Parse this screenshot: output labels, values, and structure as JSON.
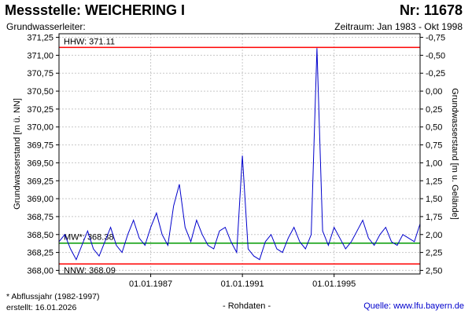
{
  "header": {
    "title": "Messstelle: WEICHERING I",
    "number": "Nr: 11678",
    "aquifer": "Grundwasserleiter:",
    "period": "Zeitraum: Jan 1983 - Okt 1998"
  },
  "footer": {
    "footnote": "* Abflussjahr (1982-1997)",
    "created": "erstellt:  16.01.2026",
    "datatype": "- Rohdaten -",
    "source": "Quelle:  www.lfu.bayern.de"
  },
  "colors": {
    "series": "#0000cc",
    "extreme_lines": "#ff0000",
    "mean_line": "#009900",
    "grid": "#c8c8c8"
  },
  "chart_data": {
    "type": "line",
    "title": "Messstelle: WEICHERING I",
    "xlabel": "",
    "ylabel": "Grundwasserstand [m ü. NN]",
    "y2label": "Grundwasserstand [m u. Gelände]",
    "grid": true,
    "x_range": [
      "1983-01",
      "1998-10"
    ],
    "ylim": [
      367.95,
      371.3
    ],
    "y_ticks": [
      "371,25",
      "371,00",
      "370,75",
      "370,50",
      "370,25",
      "370,00",
      "369,75",
      "369,50",
      "369,25",
      "369,00",
      "368,75",
      "368,50",
      "368,25",
      "368,00"
    ],
    "y2_ticks": [
      "-0,75",
      "-0,50",
      "-0,25",
      "0,00",
      "0,25",
      "0,50",
      "0,75",
      "1,00",
      "1,25",
      "1,50",
      "1,75",
      "2,00",
      "2,25",
      "2,50"
    ],
    "x_ticks": [
      "01.01.1987",
      "01.01.1991",
      "01.01.1995"
    ],
    "reference_lines": [
      {
        "label": "HHW: 371.11",
        "value": 371.11
      },
      {
        "label": "MW*: 368.38",
        "value": 368.38
      },
      {
        "label": "NNW: 368.09",
        "value": 368.09
      }
    ],
    "series": [
      {
        "x": [
          "1983-01",
          "1983-04",
          "1983-07",
          "1983-10",
          "1984-01",
          "1984-04",
          "1984-07",
          "1984-10",
          "1985-01",
          "1985-04",
          "1985-07",
          "1985-10",
          "1986-01",
          "1986-04",
          "1986-07",
          "1986-10",
          "1987-01",
          "1987-04",
          "1987-07",
          "1987-10",
          "1988-01",
          "1988-04",
          "1988-07",
          "1988-10",
          "1989-01",
          "1989-04",
          "1989-07",
          "1989-10",
          "1990-01",
          "1990-04",
          "1990-07",
          "1990-10",
          "1991-01",
          "1991-04",
          "1991-07",
          "1991-10",
          "1992-01",
          "1992-04",
          "1992-07",
          "1992-10",
          "1993-01",
          "1993-04",
          "1993-07",
          "1993-10",
          "1994-01",
          "1994-04",
          "1994-07",
          "1994-10",
          "1995-01",
          "1995-04",
          "1995-07",
          "1995-10",
          "1996-01",
          "1996-04",
          "1996-07",
          "1996-10",
          "1997-01",
          "1997-04",
          "1997-07",
          "1997-10",
          "1998-01",
          "1998-04",
          "1998-07",
          "1998-10"
        ],
        "y": [
          368.4,
          368.5,
          368.3,
          368.15,
          368.35,
          368.55,
          368.3,
          368.2,
          368.4,
          368.6,
          368.35,
          368.25,
          368.5,
          368.7,
          368.45,
          368.35,
          368.6,
          368.8,
          368.5,
          368.35,
          368.9,
          369.2,
          368.6,
          368.4,
          368.7,
          368.5,
          368.35,
          368.3,
          368.55,
          368.6,
          368.4,
          368.25,
          369.6,
          368.3,
          368.2,
          368.15,
          368.4,
          368.5,
          368.3,
          368.25,
          368.45,
          368.6,
          368.4,
          368.3,
          368.5,
          371.1,
          368.55,
          368.35,
          368.6,
          368.45,
          368.3,
          368.4,
          368.55,
          368.7,
          368.45,
          368.35,
          368.5,
          368.6,
          368.4,
          368.35,
          368.5,
          368.45,
          368.4,
          368.65
        ]
      }
    ]
  }
}
